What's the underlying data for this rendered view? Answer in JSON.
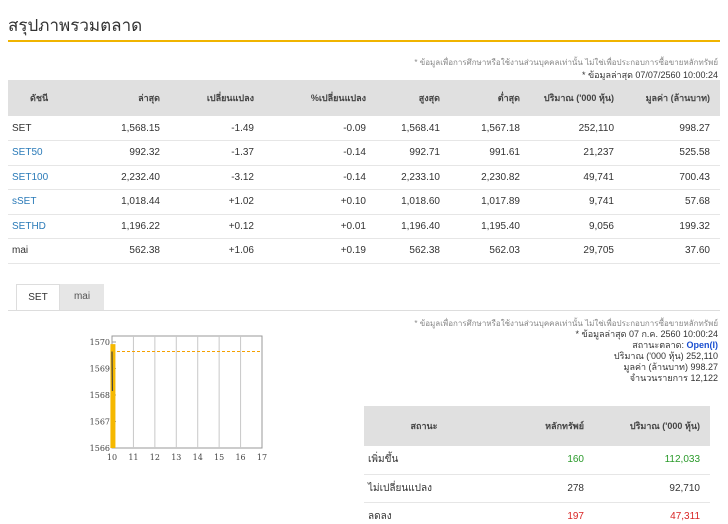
{
  "page": {
    "title": "สรุปภาพรวมตลาด"
  },
  "top_notice": {
    "disclaimer": "* ข้อมูลเพื่อการศึกษาหรือใช้งานส่วนบุคคลเท่านั้น ไม่ใช่เพื่อประกอบการซื้อขายหลักทรัพย์",
    "update": "* ข้อมูลล่าสุด 07/07/2560 10:00:24"
  },
  "index_table": {
    "headers": [
      "ดัชนี",
      "ล่าสุด",
      "เปลี่ยนแปลง",
      "%เปลี่ยนแปลง",
      "สูงสุด",
      "ต่ำสุด",
      "ปริมาณ ('000 หุ้น)",
      "มูลค่า (ล้านบาท)"
    ],
    "rows": [
      {
        "name": "SET",
        "link": false,
        "last": "1,568.15",
        "change": "-1.49",
        "pct": "-0.09",
        "high": "1,568.41",
        "low": "1,567.18",
        "volume": "252,110",
        "value": "998.27",
        "dir": "neg"
      },
      {
        "name": "SET50",
        "link": true,
        "last": "992.32",
        "change": "-1.37",
        "pct": "-0.14",
        "high": "992.71",
        "low": "991.61",
        "volume": "21,237",
        "value": "525.58",
        "dir": "neg"
      },
      {
        "name": "SET100",
        "link": true,
        "last": "2,232.40",
        "change": "-3.12",
        "pct": "-0.14",
        "high": "2,233.10",
        "low": "2,230.82",
        "volume": "49,741",
        "value": "700.43",
        "dir": "neg"
      },
      {
        "name": "sSET",
        "link": true,
        "last": "1,018.44",
        "change": "+1.02",
        "pct": "+0.10",
        "high": "1,018.60",
        "low": "1,017.89",
        "volume": "9,741",
        "value": "57.68",
        "dir": "pos"
      },
      {
        "name": "SETHD",
        "link": true,
        "last": "1,196.22",
        "change": "+0.12",
        "pct": "+0.01",
        "high": "1,196.40",
        "low": "1,195.40",
        "volume": "9,056",
        "value": "199.32",
        "dir": "pos"
      },
      {
        "name": "mai",
        "link": false,
        "last": "562.38",
        "change": "+1.06",
        "pct": "+0.19",
        "high": "562.38",
        "low": "562.03",
        "volume": "29,705",
        "value": "37.60",
        "dir": "pos"
      }
    ]
  },
  "tabs": [
    {
      "label": "SET",
      "active": true
    },
    {
      "label": "mai",
      "active": false
    }
  ],
  "chart_data": {
    "type": "line",
    "x_ticks": [
      "10",
      "11",
      "12",
      "13",
      "14",
      "15",
      "16",
      "17"
    ],
    "y_ticks": [
      "1566",
      "1567",
      "1568",
      "1569",
      "1570"
    ],
    "ylim": [
      1566,
      1570
    ],
    "xlim": [
      10,
      17
    ],
    "prev_close": 1569.64,
    "series": [
      {
        "x": [
          10.0,
          10.02
        ],
        "y": [
          1569.64,
          1568.15
        ]
      }
    ],
    "volume_bar": {
      "x": 10.02,
      "level": 0.98
    },
    "colors": {
      "line": "#444444",
      "volume": "#f5b800",
      "prev_close": "#f5a000"
    }
  },
  "market_info": {
    "disclaimer": "* ข้อมูลเพื่อการศึกษาหรือใช้งานส่วนบุคคลเท่านั้น ไม่ใช่เพื่อประกอบการซื้อขายหลักทรัพย์",
    "update": "* ข้อมูลล่าสุด 07 ก.ค. 2560 10:00:24",
    "status_label": "สถานะตลาด:",
    "status_value": "Open(I)",
    "volume_label": "ปริมาณ ('000 หุ้น)",
    "volume_value": "252,110",
    "value_label": "มูลค่า (ล้านบาท)",
    "value_value": "998.27",
    "trades_label": "จำนวนรายการ",
    "trades_value": "12,122"
  },
  "status_table": {
    "headers": [
      "สถานะ",
      "หลักทรัพย์",
      "ปริมาณ ('000 หุ้น)"
    ],
    "rows": [
      {
        "label": "เพิ่มขึ้น",
        "count": "160",
        "volume": "112,033",
        "color": "#2a9a2a"
      },
      {
        "label": "ไม่เปลี่ยนแปลง",
        "count": "278",
        "volume": "92,710",
        "color": "#333333"
      },
      {
        "label": "ลดลง",
        "count": "197",
        "volume": "47,311",
        "color": "#d92626"
      }
    ]
  }
}
